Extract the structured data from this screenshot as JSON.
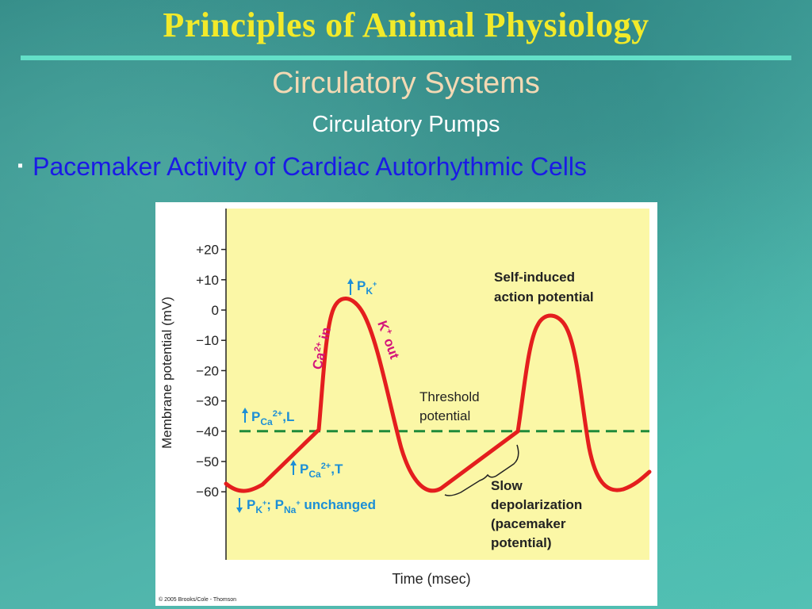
{
  "slide": {
    "title": "Principles of Animal Physiology",
    "subtitle": "Circulatory Systems",
    "section": "Circulatory Pumps",
    "bullet": "Pacemaker Activity of Cardiac Autorhythmic Cells"
  },
  "figure": {
    "y_axis_label": "Membrane potential (mV)",
    "x_axis_label": "Time (msec)",
    "y_ticks": [
      {
        "label": "+20",
        "value": 20
      },
      {
        "label": "+10",
        "value": 10
      },
      {
        "label": "0",
        "value": 0
      },
      {
        "label": "−10",
        "value": -10
      },
      {
        "label": "−20",
        "value": -20
      },
      {
        "label": "−30",
        "value": -30
      },
      {
        "label": "−40",
        "value": -40
      },
      {
        "label": "−50",
        "value": -50
      },
      {
        "label": "−60",
        "value": -60
      }
    ],
    "threshold_value": -40,
    "threshold_label": [
      "Threshold",
      "potential"
    ],
    "self_induced_label": [
      "Self-induced",
      "action potential"
    ],
    "slow_depol_label": [
      "Slow",
      "depolarization",
      "(pacemaker",
      "potential)"
    ],
    "ca_in": {
      "ion": "Ca",
      "charge": "2+",
      "text": " in"
    },
    "k_out": {
      "ion": "K",
      "charge": "+",
      "text": " out"
    },
    "pk_up": {
      "p": "P",
      "ion": "K",
      "charge": "+"
    },
    "pca_l": {
      "p": "P",
      "ion": "Ca",
      "charge": "2+",
      "suffix": ",L"
    },
    "pca_t": {
      "p": "P",
      "ion": "Ca",
      "charge": "2+",
      "suffix": ",T"
    },
    "pk_pna": {
      "p": "P",
      "ion1": "K",
      "charge1": "+",
      "sep": "; P",
      "ion2": "Na",
      "charge2": "+",
      "suffix": " unchanged"
    },
    "copyright": "© 2005 Brooks/Cole - Thomson",
    "colors": {
      "panel": "#fbf7a6",
      "trace": "#e41e1e",
      "threshold": "#1f8a3a",
      "blue_label": "#1c8fd6",
      "magenta_label": "#d4147a"
    }
  }
}
